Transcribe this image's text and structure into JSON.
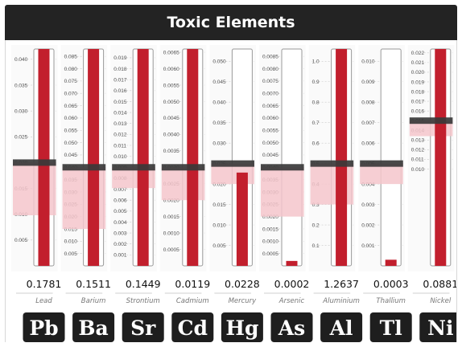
{
  "header": {
    "title": "Toxic Elements"
  },
  "colors": {
    "bar": "#c21f2d",
    "range_band": "#f4c6cb",
    "limit_band": "#3a3a3a",
    "tile": "#1e1e1e",
    "title_bar": "#232323"
  },
  "chart_data": {
    "type": "bar",
    "title": "Toxic Elements",
    "layout": "one vertical gauge per element",
    "series": [
      {
        "symbol": "Pb",
        "name": "Lead",
        "value": 0.1781,
        "display": "0.1781",
        "ymax": 0.042,
        "limit": 0.02,
        "range_low": 0.0098,
        "ticks": [
          "0.040",
          "0.035",
          "0.030",
          "0.025",
          "0.020",
          "0.015",
          "0.010",
          "0.005"
        ]
      },
      {
        "symbol": "Ba",
        "name": "Barium",
        "value": 0.1511,
        "display": "0.1511",
        "ymax": 0.088,
        "limit": 0.04,
        "range_low": 0.015,
        "ticks": [
          "0.085",
          "0.080",
          "0.075",
          "0.070",
          "0.065",
          "0.060",
          "0.055",
          "0.050",
          "0.045",
          "0.040",
          "0.035",
          "0.030",
          "0.025",
          "0.020",
          "0.015",
          "0.010",
          "0.005"
        ]
      },
      {
        "symbol": "Sr",
        "name": "Strontium",
        "value": 0.1449,
        "display": "0.1449",
        "ymax": 0.0198,
        "limit": 0.009,
        "range_low": 0.0071,
        "ticks": [
          "0.019",
          "0.018",
          "0.017",
          "0.016",
          "0.015",
          "0.014",
          "0.013",
          "0.012",
          "0.011",
          "0.010",
          "0.009",
          "0.008",
          "0.007",
          "0.006",
          "0.005",
          "0.004",
          "0.003",
          "0.002",
          "0.001"
        ]
      },
      {
        "symbol": "Cd",
        "name": "Cadmium",
        "value": 0.0119,
        "display": "0.0119",
        "ymax": 0.0066,
        "limit": 0.003,
        "range_low": 0.002,
        "ticks": [
          "0.0065",
          "0.0060",
          "0.0055",
          "0.0050",
          "0.0045",
          "0.0040",
          "0.0035",
          "0.0030",
          "0.0025",
          "0.0020",
          "0.0015",
          "0.0010",
          "0.0005"
        ]
      },
      {
        "symbol": "Hg",
        "name": "Mercury",
        "value": 0.0228,
        "display": "0.0228",
        "ymax": 0.053,
        "limit": 0.025,
        "range_low": 0.02,
        "ticks": [
          "0.050",
          "0.045",
          "0.040",
          "0.035",
          "0.030",
          "0.025",
          "0.020",
          "0.015",
          "0.010",
          "0.005"
        ]
      },
      {
        "symbol": "As",
        "name": "Arsenic",
        "value": 0.0002,
        "display": "0.0002",
        "ymax": 0.0088,
        "limit": 0.004,
        "range_low": 0.002,
        "ticks": [
          "0.0085",
          "0.0080",
          "0.0075",
          "0.0070",
          "0.0065",
          "0.0060",
          "0.0055",
          "0.0050",
          "0.0045",
          "0.0040",
          "0.0035",
          "0.0030",
          "0.0025",
          "0.0020",
          "0.0015",
          "0.0010",
          "0.0005"
        ]
      },
      {
        "symbol": "Al",
        "name": "Aluminium",
        "value": 1.2637,
        "display": "1.2637",
        "ymax": 1.06,
        "limit": 0.5,
        "range_low": 0.3,
        "ticks": [
          "1.0",
          "0.9",
          "0.8",
          "0.7",
          "0.6",
          "0.5",
          "0.4",
          "0.3",
          "0.2",
          "0.1"
        ]
      },
      {
        "symbol": "Tl",
        "name": "Thallium",
        "value": 0.0003,
        "display": "0.0003",
        "ymax": 0.0106,
        "limit": 0.005,
        "range_low": 0.004,
        "ticks": [
          "0.010",
          "0.009",
          "0.008",
          "0.007",
          "0.006",
          "0.005",
          "0.004",
          "0.003",
          "0.002",
          "0.001"
        ]
      },
      {
        "symbol": "Ni",
        "name": "Nickel",
        "value": 0.0881,
        "display": "0.0881",
        "ymax": 0.0224,
        "limit": 0.015,
        "range_low": 0.0134,
        "ticks": [
          "0.022",
          "0.021",
          "0.020",
          "0.019",
          "0.018",
          "0.017",
          "0.016",
          "0.015",
          "0.014",
          "0.013",
          "0.012",
          "0.011",
          "0.010"
        ]
      }
    ]
  }
}
